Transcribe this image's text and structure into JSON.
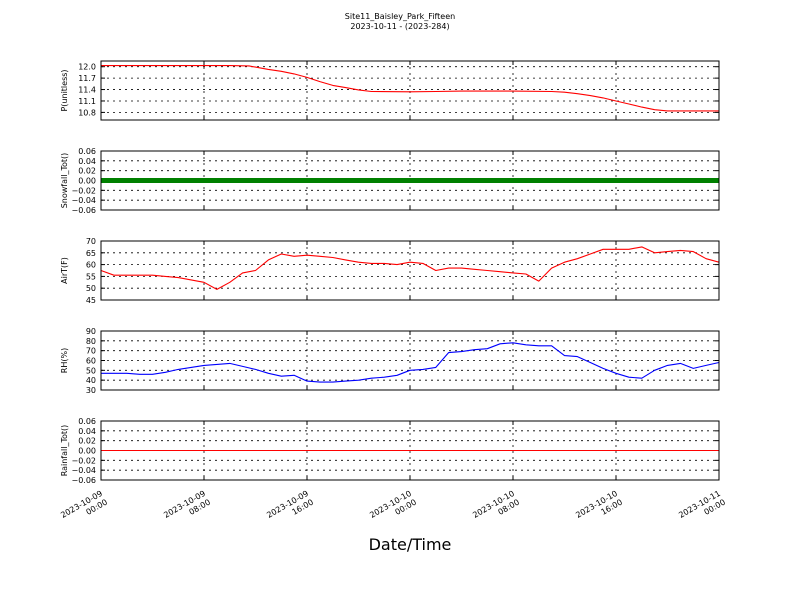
{
  "figure": {
    "title_line1": "Site11_Baisley_Park_Fifteen",
    "title_line2": "2023-10-11 - (2023-284)",
    "xlabel": "Date/Time"
  },
  "chart_data": [
    {
      "type": "line",
      "ylabel": "P(unitless)",
      "ylim": [
        10.6,
        12.15
      ],
      "yticks": [
        10.8,
        11.1,
        11.4,
        11.7,
        12.0
      ],
      "ytick_labels": [
        "10.8",
        "11.1",
        "11.4",
        "11.7",
        "12.0"
      ],
      "xlim": [
        "2023-10-09 00:00",
        "2023-10-11 00:00"
      ],
      "xticks": [
        "2023-10-09 00:00",
        "2023-10-09 08:00",
        "2023-10-09 16:00",
        "2023-10-10 00:00",
        "2023-10-10 08:00",
        "2023-10-10 16:00",
        "2023-10-11 00:00"
      ],
      "grid": true,
      "series": [
        {
          "color": "#ff0000",
          "x": [
            "2023-10-09 00:00",
            "2023-10-09 04:00",
            "2023-10-09 10:00",
            "2023-10-09 11:30",
            "2023-10-09 12:00",
            "2023-10-09 13:00",
            "2023-10-09 14:00",
            "2023-10-09 15:00",
            "2023-10-09 16:00",
            "2023-10-09 17:00",
            "2023-10-09 18:00",
            "2023-10-09 19:00",
            "2023-10-09 20:00",
            "2023-10-09 21:00",
            "2023-10-10 00:00",
            "2023-10-10 02:00",
            "2023-10-10 04:00",
            "2023-10-10 08:00",
            "2023-10-10 11:00",
            "2023-10-10 12:00",
            "2023-10-10 13:00",
            "2023-10-10 14:00",
            "2023-10-10 15:00",
            "2023-10-10 16:00",
            "2023-10-10 17:00",
            "2023-10-10 18:00",
            "2023-10-10 19:00",
            "2023-10-10 20:00",
            "2023-10-11 00:00"
          ],
          "values": [
            12.03,
            12.03,
            12.03,
            12.02,
            11.99,
            11.93,
            11.88,
            11.81,
            11.72,
            11.61,
            11.51,
            11.45,
            11.39,
            11.35,
            11.34,
            11.35,
            11.36,
            11.36,
            11.35,
            11.33,
            11.29,
            11.24,
            11.18,
            11.1,
            11.02,
            10.94,
            10.87,
            10.84,
            10.84
          ]
        }
      ]
    },
    {
      "type": "line",
      "ylabel": "Snowfall_Tot()",
      "ylim": [
        -0.06,
        0.06
      ],
      "yticks": [
        -0.06,
        -0.04,
        -0.02,
        0.0,
        0.02,
        0.04,
        0.06
      ],
      "ytick_labels": [
        "−0.06",
        "−0.04",
        "−0.02",
        "0.00",
        "0.02",
        "0.04",
        "0.06"
      ],
      "grid": true,
      "series": [
        {
          "color": "#008000",
          "marker": "circle",
          "x": [
            "2023-10-09 00:00",
            "2023-10-11 00:00"
          ],
          "values": [
            0.0,
            0.0
          ]
        }
      ]
    },
    {
      "type": "line",
      "ylabel": "AirT(F)",
      "ylim": [
        45,
        70
      ],
      "yticks": [
        45,
        50,
        55,
        60,
        65,
        70
      ],
      "ytick_labels": [
        "45",
        "50",
        "55",
        "60",
        "65",
        "70"
      ],
      "grid": true,
      "series": [
        {
          "color": "#ff0000",
          "x": [
            "2023-10-09 00:00",
            "2023-10-09 01:00",
            "2023-10-09 02:00",
            "2023-10-09 03:00",
            "2023-10-09 04:00",
            "2023-10-09 05:00",
            "2023-10-09 06:00",
            "2023-10-09 07:00",
            "2023-10-09 08:00",
            "2023-10-09 09:00",
            "2023-10-09 10:00",
            "2023-10-09 11:00",
            "2023-10-09 12:00",
            "2023-10-09 13:00",
            "2023-10-09 14:00",
            "2023-10-09 15:00",
            "2023-10-09 16:00",
            "2023-10-09 17:00",
            "2023-10-09 18:00",
            "2023-10-09 19:00",
            "2023-10-09 20:00",
            "2023-10-09 21:00",
            "2023-10-09 22:00",
            "2023-10-09 23:00",
            "2023-10-10 00:00",
            "2023-10-10 01:00",
            "2023-10-10 02:00",
            "2023-10-10 03:00",
            "2023-10-10 04:00",
            "2023-10-10 05:00",
            "2023-10-10 06:00",
            "2023-10-10 07:00",
            "2023-10-10 08:00",
            "2023-10-10 09:00",
            "2023-10-10 10:00",
            "2023-10-10 11:00",
            "2023-10-10 12:00",
            "2023-10-10 13:00",
            "2023-10-10 14:00",
            "2023-10-10 15:00",
            "2023-10-10 16:00",
            "2023-10-10 17:00",
            "2023-10-10 18:00",
            "2023-10-10 19:00",
            "2023-10-10 20:00",
            "2023-10-10 21:00",
            "2023-10-10 22:00",
            "2023-10-10 23:00",
            "2023-10-11 00:00"
          ],
          "values": [
            57.5,
            55.5,
            55.5,
            55.5,
            55.5,
            55.0,
            54.5,
            53.5,
            52.5,
            49.5,
            52.5,
            56.5,
            57.5,
            62.0,
            64.5,
            63.5,
            64.0,
            63.5,
            63.0,
            62.0,
            61.0,
            60.5,
            60.5,
            60.0,
            61.0,
            60.5,
            57.5,
            58.5,
            58.5,
            58.0,
            57.5,
            57.0,
            56.5,
            56.0,
            53.0,
            58.5,
            61.0,
            62.5,
            64.5,
            66.5,
            66.5,
            66.5,
            67.5,
            65.0,
            65.5,
            66.0,
            65.5,
            62.5,
            61.0
          ]
        }
      ]
    },
    {
      "type": "line",
      "ylabel": "RH(%)",
      "ylim": [
        30,
        90
      ],
      "yticks": [
        30,
        40,
        50,
        60,
        70,
        80,
        90
      ],
      "ytick_labels": [
        "30",
        "40",
        "50",
        "60",
        "70",
        "80",
        "90"
      ],
      "grid": true,
      "series": [
        {
          "color": "#0000ff",
          "x": [
            "2023-10-09 00:00",
            "2023-10-09 01:00",
            "2023-10-09 02:00",
            "2023-10-09 03:00",
            "2023-10-09 04:00",
            "2023-10-09 05:00",
            "2023-10-09 06:00",
            "2023-10-09 07:00",
            "2023-10-09 08:00",
            "2023-10-09 09:00",
            "2023-10-09 10:00",
            "2023-10-09 11:00",
            "2023-10-09 12:00",
            "2023-10-09 13:00",
            "2023-10-09 14:00",
            "2023-10-09 15:00",
            "2023-10-09 16:00",
            "2023-10-09 17:00",
            "2023-10-09 18:00",
            "2023-10-09 19:00",
            "2023-10-09 20:00",
            "2023-10-09 21:00",
            "2023-10-09 22:00",
            "2023-10-09 23:00",
            "2023-10-10 00:00",
            "2023-10-10 01:00",
            "2023-10-10 02:00",
            "2023-10-10 03:00",
            "2023-10-10 04:00",
            "2023-10-10 05:00",
            "2023-10-10 06:00",
            "2023-10-10 07:00",
            "2023-10-10 08:00",
            "2023-10-10 09:00",
            "2023-10-10 10:00",
            "2023-10-10 11:00",
            "2023-10-10 12:00",
            "2023-10-10 13:00",
            "2023-10-10 14:00",
            "2023-10-10 15:00",
            "2023-10-10 16:00",
            "2023-10-10 17:00",
            "2023-10-10 18:00",
            "2023-10-10 19:00",
            "2023-10-10 20:00",
            "2023-10-10 21:00",
            "2023-10-10 22:00",
            "2023-10-10 23:00",
            "2023-10-11 00:00"
          ],
          "values": [
            47,
            47,
            47,
            46,
            46,
            48,
            51,
            53,
            55,
            56,
            57,
            54,
            51,
            47,
            44,
            45,
            39,
            38,
            38,
            39,
            40,
            42,
            43,
            45,
            50,
            51,
            53,
            68,
            69,
            71,
            72,
            77,
            78,
            76,
            75,
            75,
            65,
            64,
            58,
            52,
            47,
            43,
            42,
            50,
            55,
            57,
            52,
            55,
            58
          ]
        }
      ]
    },
    {
      "type": "line",
      "ylabel": "Rainfall_Tot()",
      "ylim": [
        -0.06,
        0.06
      ],
      "yticks": [
        -0.06,
        -0.04,
        -0.02,
        0.0,
        0.02,
        0.04,
        0.06
      ],
      "ytick_labels": [
        "−0.06",
        "−0.04",
        "−0.02",
        "0.00",
        "0.02",
        "0.04",
        "0.06"
      ],
      "grid": true,
      "series": [
        {
          "color": "#ff0000",
          "x": [
            "2023-10-09 00:00",
            "2023-10-11 00:00"
          ],
          "values": [
            0.0,
            0.0
          ]
        }
      ],
      "xtick_labels": [
        [
          "2023-10-09",
          "00:00"
        ],
        [
          "2023-10-09",
          "08:00"
        ],
        [
          "2023-10-09",
          "16:00"
        ],
        [
          "2023-10-10",
          "00:00"
        ],
        [
          "2023-10-10",
          "08:00"
        ],
        [
          "2023-10-10",
          "16:00"
        ],
        [
          "2023-10-11",
          "00:00"
        ]
      ]
    }
  ]
}
